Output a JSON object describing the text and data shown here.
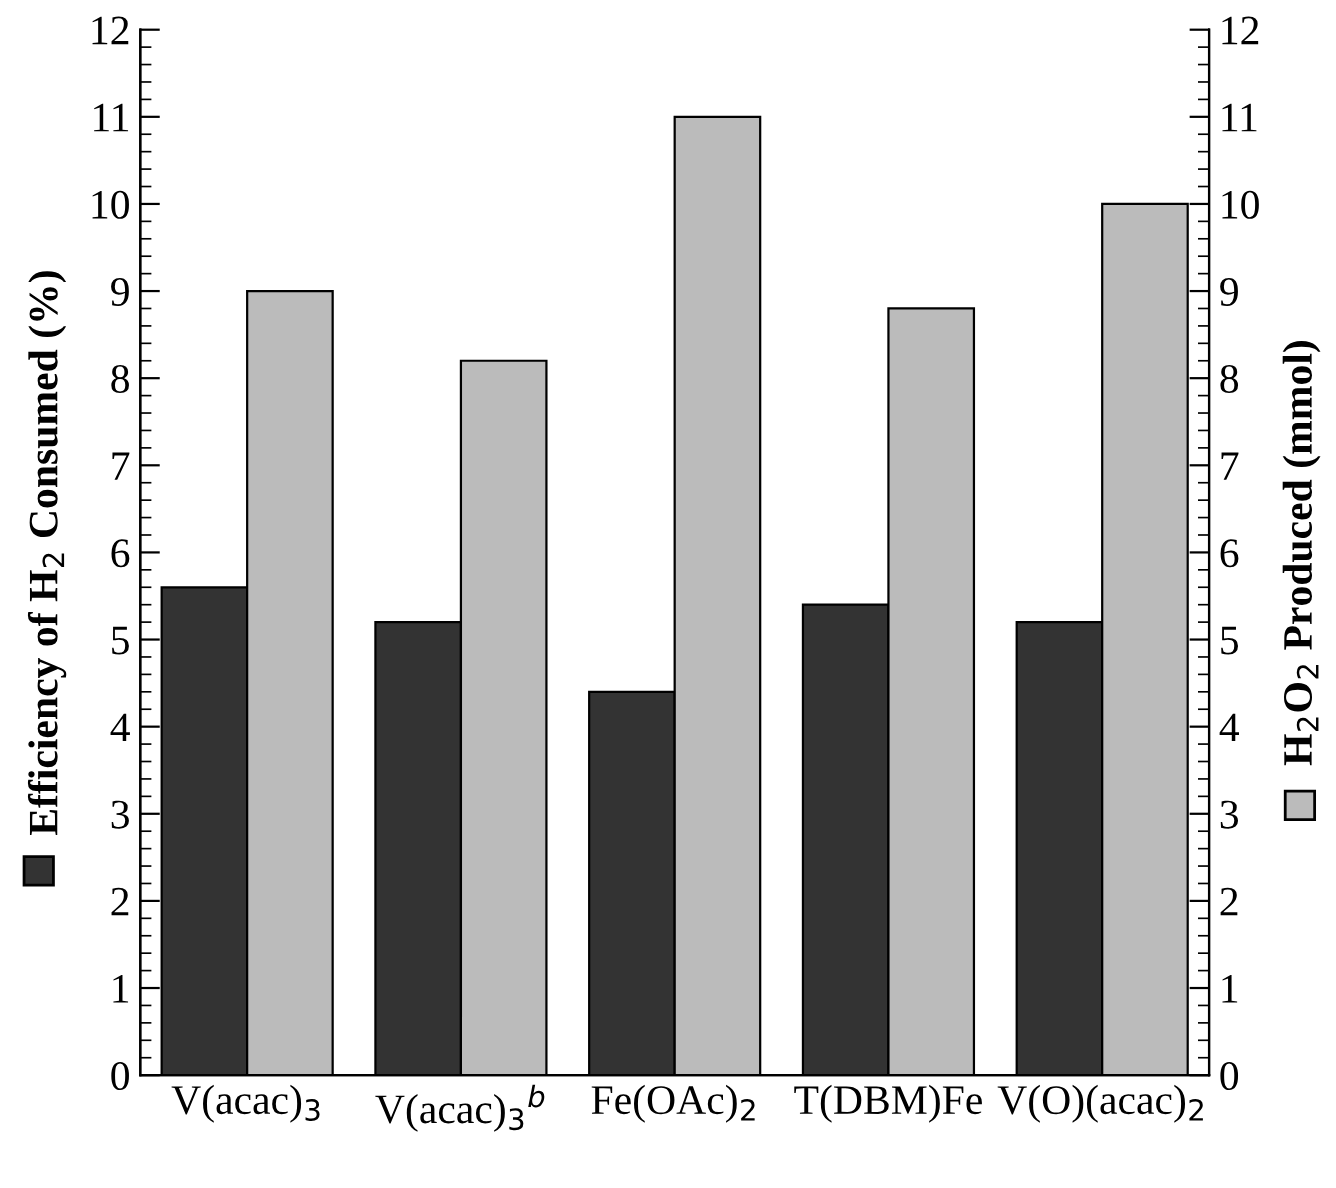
{
  "chart_data": {
    "type": "bar",
    "categories": [
      "V(acac)$_{3}$",
      "V(acac)$_{3}$$^{b}$",
      "Fe(OAc)$_{2}$",
      "T(DBM)Fe",
      "V(O)(acac)$_{2}$"
    ],
    "series": [
      {
        "color": "#333333",
        "values": [
          5.6,
          5.2,
          4.4,
          5.4,
          5.2
        ]
      },
      {
        "color": "#bbbbbb",
        "values": [
          9.0,
          8.2,
          11.0,
          8.8,
          10.0
        ],
        "axis": "y2"
      }
    ],
    "ylabel": "Efficiency of H$_{2}$ Consumed (%)",
    "y2label": "H$_{2}$O$_{2}$ Produced (mmol)",
    "ylim": [
      0,
      12
    ],
    "yticks": [
      0,
      1,
      2,
      3,
      4,
      5,
      6,
      7,
      8,
      9,
      10,
      11,
      12
    ],
    "y2lim": [
      0,
      12
    ],
    "y2ticks": [
      0,
      1,
      2,
      3,
      4,
      5,
      6,
      7,
      8,
      9,
      10,
      11,
      12
    ],
    "grid": false,
    "legend": false
  }
}
